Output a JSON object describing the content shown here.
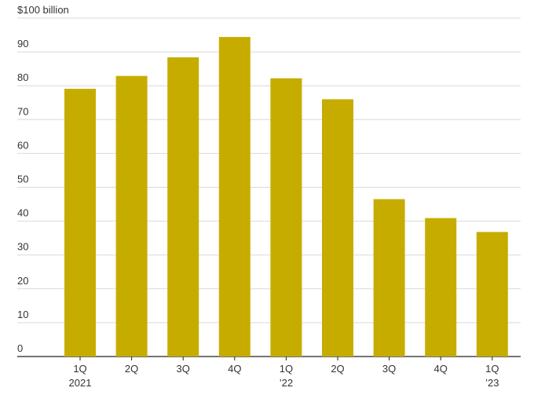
{
  "chart_data": {
    "type": "bar",
    "title": "",
    "xlabel": "",
    "ylabel": "",
    "ylim": [
      0,
      100
    ],
    "y_ticks": [
      {
        "value": 100,
        "label": "$100 billion"
      },
      {
        "value": 90,
        "label": "90"
      },
      {
        "value": 80,
        "label": "80"
      },
      {
        "value": 70,
        "label": "70"
      },
      {
        "value": 60,
        "label": "60"
      },
      {
        "value": 50,
        "label": "50"
      },
      {
        "value": 40,
        "label": "40"
      },
      {
        "value": 30,
        "label": "30"
      },
      {
        "value": 20,
        "label": "20"
      },
      {
        "value": 10,
        "label": "10"
      },
      {
        "value": 0,
        "label": "0"
      }
    ],
    "categories": [
      {
        "label": "1Q",
        "sublabel": "2021"
      },
      {
        "label": "2Q",
        "sublabel": ""
      },
      {
        "label": "3Q",
        "sublabel": ""
      },
      {
        "label": "4Q",
        "sublabel": ""
      },
      {
        "label": "1Q",
        "sublabel": "’22"
      },
      {
        "label": "2Q",
        "sublabel": ""
      },
      {
        "label": "3Q",
        "sublabel": ""
      },
      {
        "label": "4Q",
        "sublabel": ""
      },
      {
        "label": "1Q",
        "sublabel": "’23"
      }
    ],
    "values": [
      79.1,
      82.9,
      88.4,
      94.4,
      82.2,
      76.0,
      46.5,
      40.9,
      36.8
    ],
    "bar_color": "#c7ac00",
    "grid": true,
    "legend": "none"
  }
}
